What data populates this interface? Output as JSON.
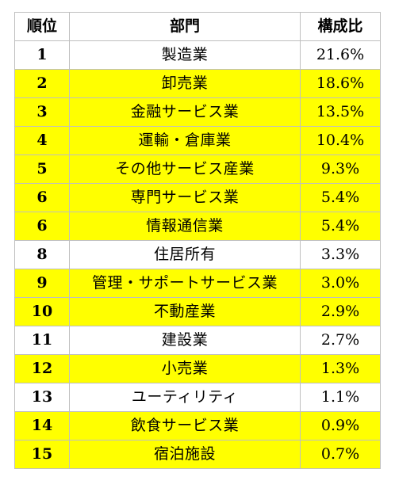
{
  "table": {
    "headers": [
      "順位",
      "部門",
      "構成比"
    ],
    "highlight_color": "#ffff00",
    "rows": [
      {
        "rank": "1",
        "dept": "製造業",
        "share": "21.6%",
        "highlight": false
      },
      {
        "rank": "2",
        "dept": "卸売業",
        "share": "18.6%",
        "highlight": true
      },
      {
        "rank": "3",
        "dept": "金融サービス業",
        "share": "13.5%",
        "highlight": true
      },
      {
        "rank": "4",
        "dept": "運輸・倉庫業",
        "share": "10.4%",
        "highlight": true
      },
      {
        "rank": "5",
        "dept": "その他サービス産業",
        "share": "9.3%",
        "highlight": true
      },
      {
        "rank": "6",
        "dept": "専門サービス業",
        "share": "5.4%",
        "highlight": true
      },
      {
        "rank": "6",
        "dept": "情報通信業",
        "share": "5.4%",
        "highlight": true
      },
      {
        "rank": "8",
        "dept": "住居所有",
        "share": "3.3%",
        "highlight": false
      },
      {
        "rank": "9",
        "dept": "管理・サポートサービス業",
        "share": "3.0%",
        "highlight": true
      },
      {
        "rank": "10",
        "dept": "不動産業",
        "share": "2.9%",
        "highlight": true
      },
      {
        "rank": "11",
        "dept": "建設業",
        "share": "2.7%",
        "highlight": false
      },
      {
        "rank": "12",
        "dept": "小売業",
        "share": "1.3%",
        "highlight": true
      },
      {
        "rank": "13",
        "dept": "ユーティリティ",
        "share": "1.1%",
        "highlight": false
      },
      {
        "rank": "14",
        "dept": "飲食サービス業",
        "share": "0.9%",
        "highlight": true
      },
      {
        "rank": "15",
        "dept": "宿泊施設",
        "share": "0.7%",
        "highlight": true
      }
    ]
  }
}
